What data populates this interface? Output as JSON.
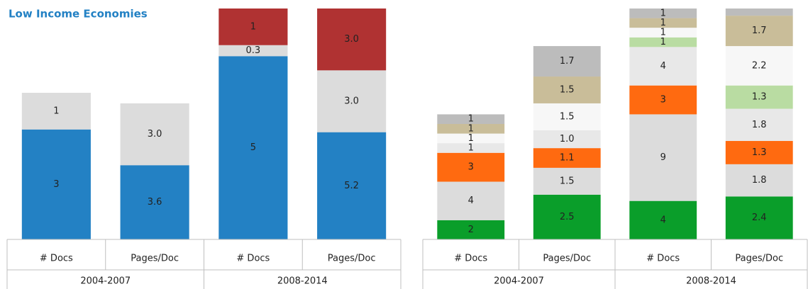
{
  "chart_data": [
    {
      "type": "stacked_bar",
      "title": "Low Income Economies",
      "categories": [
        "# Docs",
        "Pages/Doc",
        "# Docs",
        "Pages/Doc"
      ],
      "groups": [
        "2004-2007",
        "2008-2014"
      ],
      "series": [
        {
          "color": "#2381c4",
          "values": [
            3,
            3.6,
            5,
            5.2
          ],
          "value_labels": [
            "3",
            "3.6",
            "5",
            "5.2"
          ]
        },
        {
          "color": "#dcdcdc",
          "values": [
            1,
            3.0,
            0.3,
            3.0
          ],
          "value_labels": [
            "1",
            "3.0",
            "0.3",
            "3.0"
          ]
        },
        {
          "color": "#b03232",
          "values": [
            null,
            null,
            1,
            3.0
          ],
          "value_labels": [
            null,
            null,
            "1",
            "3.0"
          ]
        }
      ]
    },
    {
      "type": "stacked_bar",
      "categories": [
        "# Docs",
        "Pages/Doc",
        "# Docs",
        "Pages/Doc"
      ],
      "groups": [
        "2004-2007",
        "2008-2014"
      ],
      "series": [
        {
          "color": "#0a9e2a",
          "values": [
            2,
            2.5,
            4,
            2.4
          ],
          "value_labels": [
            "2",
            "2.5",
            "4",
            "2.4"
          ]
        },
        {
          "color": "#dcdcdc",
          "values": [
            4,
            1.5,
            9,
            1.8
          ],
          "value_labels": [
            "4",
            "1.5",
            "9",
            "1.8"
          ]
        },
        {
          "color": "#ff6a10",
          "values": [
            3,
            1.1,
            3,
            1.3
          ],
          "value_labels": [
            "3",
            "1.1",
            "3",
            "1.3"
          ]
        },
        {
          "color": "#e8e8e8",
          "values": [
            1,
            1.0,
            4,
            1.8
          ],
          "value_labels": [
            "1",
            "1.0",
            "4",
            "1.8"
          ]
        },
        {
          "color": "#b9dca2",
          "values": [
            null,
            null,
            1,
            1.3
          ],
          "value_labels": [
            null,
            null,
            "1",
            "1.3"
          ]
        },
        {
          "color": "#f7f7f7",
          "values": [
            1,
            1.5,
            1,
            2.2
          ],
          "value_labels": [
            "1",
            "1.5",
            "1",
            "2.2"
          ]
        },
        {
          "color": "#c9bd99",
          "values": [
            1,
            1.5,
            1,
            1.7
          ],
          "value_labels": [
            "1",
            "1.5",
            "1",
            "1.7"
          ]
        },
        {
          "color": "#bcbcbc",
          "values": [
            1,
            1.7,
            1,
            0.4
          ],
          "value_labels": [
            "1",
            "1.7",
            "1",
            null
          ]
        }
      ]
    }
  ]
}
